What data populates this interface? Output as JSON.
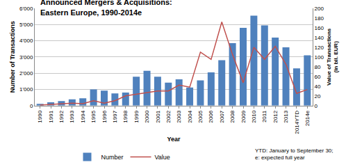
{
  "chart_data": {
    "type": "bar",
    "title": "Announced Mergers & Acquisitions:\nEastern Europe, 1990-2014e",
    "x_label": "Year",
    "y_label": "Number of Transactions",
    "y2_label": "Value of Transactions\n(in bil. EUR)",
    "annotation": "YTD: January to September 30;\ne: expected full year",
    "categories": [
      "1990",
      "1991",
      "1992",
      "1993",
      "1994",
      "1995",
      "1996",
      "1997",
      "1998",
      "1999",
      "2000",
      "2001",
      "2002",
      "2003",
      "2004",
      "2005",
      "2006",
      "2007",
      "2008",
      "2009",
      "2010",
      "2011",
      "2012",
      "2013",
      "2014YTD",
      "2014e"
    ],
    "series": [
      {
        "name": "Number",
        "type": "bar",
        "color": "#4f81bd",
        "values": [
          100,
          200,
          280,
          380,
          450,
          1000,
          920,
          750,
          800,
          1780,
          2150,
          1780,
          1420,
          1620,
          1120,
          1550,
          2050,
          2800,
          3850,
          4800,
          5550,
          4950,
          4200,
          3600,
          2300,
          3100
        ]
      },
      {
        "name": "Value",
        "type": "line",
        "axis": "y2",
        "color": "#c0504d",
        "values": [
          1,
          2,
          3,
          5,
          4,
          10,
          5,
          10,
          20,
          23,
          26,
          30,
          30,
          42,
          38,
          110,
          95,
          172,
          105,
          47,
          120,
          95,
          122,
          85,
          25,
          33
        ]
      }
    ],
    "ylim": [
      0,
      6000
    ],
    "yticks": [
      0,
      {
        "value": 1000,
        "label": "1'000"
      },
      {
        "value": 2000,
        "label": "2'000"
      },
      {
        "value": 3000,
        "label": "3'000"
      },
      {
        "value": 4000,
        "label": "4'000"
      },
      {
        "value": 5000,
        "label": "5'000"
      },
      {
        "value": 6000,
        "label": "6'000"
      }
    ],
    "y2lim": [
      0,
      200
    ],
    "y2ticks": [
      0,
      20,
      40,
      60,
      80,
      100,
      120,
      140,
      160,
      180,
      200
    ],
    "grid": true,
    "legend": "bottom"
  }
}
